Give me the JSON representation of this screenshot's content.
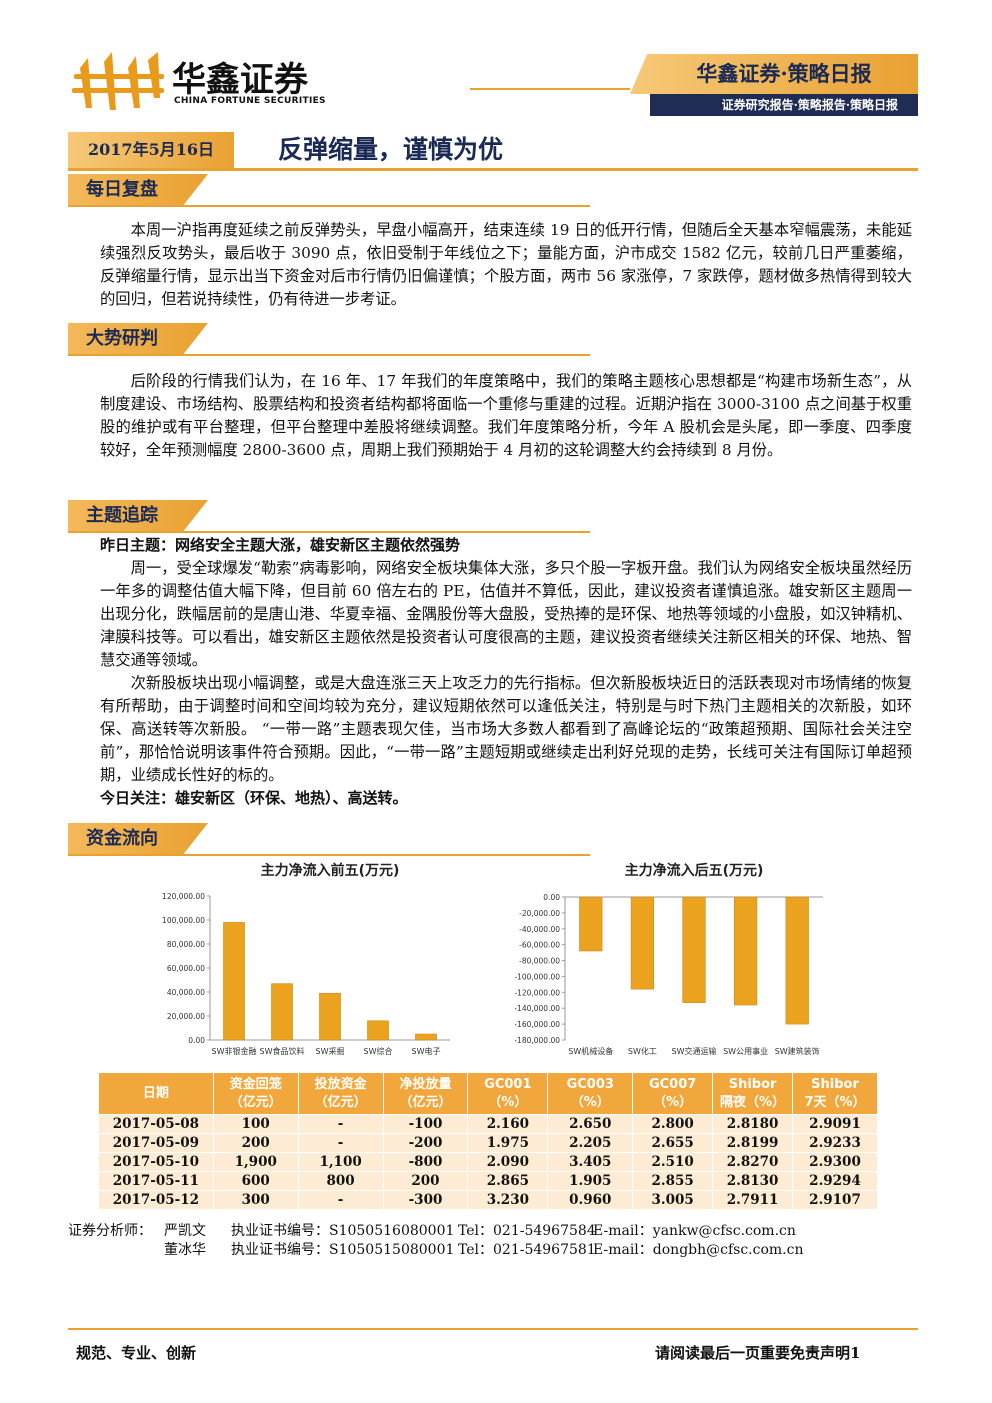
{
  "header": {
    "logo_name": "华鑫证券",
    "logo_english": "CHINA FORTUNE SECURITIES",
    "banner_title": "华鑫证券·策略日报",
    "banner_subtitle": "证券研究报告·策略报告·策略日报"
  },
  "report": {
    "date": "2017年5月16日",
    "title": "反弹缩量，谨慎为优"
  },
  "sections": [
    {
      "heading": "每日复盘",
      "paragraphs": [
        "本周一沪指再度延续之前反弹势头，早盘小幅高开，结束连续 19 日的低开行情，但随后全天基本窄幅震荡，未能延续强烈反攻势头，最后收于 3090 点，依旧受制于年线位之下；量能方面，沪市成交 1582 亿元，较前几日严重萎缩，反弹缩量行情，显示出当下资金对后市行情仍旧偏谨慎；个股方面，两市 56 家涨停，7 家跌停，题材做多热情得到较大的回归，但若说持续性，仍有待进一步考证。"
      ]
    },
    {
      "heading": "大势研判",
      "paragraphs": [
        "后阶段的行情我们认为，在 16 年、17 年我们的年度策略中，我们的策略主题核心思想都是“构建市场新生态”，从制度建设、市场结构、股票结构和投资者结构都将面临一个重修与重建的过程。近期沪指在 3000-3100 点之间基于权重股的维护或有平台整理，但平台整理中差股将继续调整。我们年度策略分析，今年 A 股机会是头尾，即一季度、四季度较好，全年预测幅度 2800-3600 点，周期上我们预期始于 4 月初的这轮调整大约会持续到 8 月份。"
      ]
    },
    {
      "heading": "主题追踪",
      "lead": "昨日主题：网络安全主题大涨，雄安新区主题依然强势",
      "paragraphs": [
        "周一，受全球爆发“勒索”病毒影响，网络安全板块集体大涨，多只个股一字板开盘。我们认为网络安全板块虽然经历一年多的调整估值大幅下降，但目前 60 倍左右的 PE，估值并不算低，因此，建议投资者谨慎追涨。雄安新区主题周一出现分化，跌幅居前的是唐山港、华夏幸福、金隅股份等大盘股，受热捧的是环保、地热等领域的小盘股，如汉钟精机、津膜科技等。可以看出，雄安新区主题依然是投资者认可度很高的主题，建议投资者继续关注新区相关的环保、地热、智慧交通等领域。",
        "次新股板块出现小幅调整，或是大盘连涨三天上攻乏力的先行指标。但次新股板块近日的活跃表现对市场情绪的恢复有所帮助，由于调整时间和空间均较为充分，建议短期依然可以逢低关注，特别是与时下热门主题相关的次新股，如环保、高送转等次新股。 “一带一路”主题表现欠佳，当市场大多数人都看到了高峰论坛的“政策超预期、国际社会关注空前”，那恰恰说明该事件符合预期。因此，“一带一路”主题短期或继续走出利好兑现的走势，长线可关注有国际订单超预期，业绩成长性好的标的。"
      ],
      "tail": "今日关注：雄安新区（环保、地热）、高送转。"
    },
    {
      "heading": "资金流向"
    }
  ],
  "chart_data": [
    {
      "type": "bar",
      "title": "主力净流入前五(万元)",
      "categories": [
        "SW非银金融",
        "SW食品饮料",
        "SW采掘",
        "SW综合",
        "SW电子"
      ],
      "values": [
        98000,
        47000,
        39000,
        16000,
        5000
      ],
      "color": "#eba21e",
      "ylim": [
        0,
        120000
      ],
      "yticks": [
        {
          "value": 0,
          "label": "0.00"
        },
        {
          "value": 20000,
          "label": "20,000.00"
        },
        {
          "value": 40000,
          "label": "40,000.00"
        },
        {
          "value": 60000,
          "label": "60,000.00"
        },
        {
          "value": 80000,
          "label": "80,000.00"
        },
        {
          "value": 100000,
          "label": "100,000.00"
        },
        {
          "value": 120000,
          "label": "120,000.00"
        }
      ]
    },
    {
      "type": "bar",
      "title": "主力净流入后五(万元)",
      "categories": [
        "SW机械设备",
        "SW化工",
        "SW交通运输",
        "SW公用事业",
        "SW建筑装饰"
      ],
      "values": [
        -68000,
        -116000,
        -133000,
        -136000,
        -160000
      ],
      "color": "#eba21e",
      "ylim": [
        -180000,
        0
      ],
      "yticks": [
        {
          "value": 0,
          "label": "0.00"
        },
        {
          "value": -20000,
          "label": "-20,000.00"
        },
        {
          "value": -40000,
          "label": "-40,000.00"
        },
        {
          "value": -60000,
          "label": "-60,000.00"
        },
        {
          "value": -80000,
          "label": "-80,000.00"
        },
        {
          "value": -100000,
          "label": "-100,000.00"
        },
        {
          "value": -120000,
          "label": "-120,000.00"
        },
        {
          "value": -140000,
          "label": "-140,000.00"
        },
        {
          "value": -160000,
          "label": "-160,000.00"
        },
        {
          "value": -180000,
          "label": "-180,000.00"
        }
      ]
    }
  ],
  "table": {
    "header": [
      [
        "日期"
      ],
      [
        "资金回笼",
        "（亿元）"
      ],
      [
        "投放资金",
        "（亿元）"
      ],
      [
        "净投放量",
        "（亿元）"
      ],
      [
        "GC001",
        "（%）"
      ],
      [
        "GC003",
        "（%）"
      ],
      [
        "GC007",
        "（%）"
      ],
      [
        "Shibor",
        "隔夜（%）"
      ],
      [
        "Shibor",
        "7天（%）"
      ]
    ],
    "rows": [
      [
        "2017-05-08",
        "100",
        "-",
        "-100",
        "2.160",
        "2.650",
        "2.800",
        "2.8180",
        "2.9091"
      ],
      [
        "2017-05-09",
        "200",
        "-",
        "-200",
        "1.975",
        "2.205",
        "2.655",
        "2.8199",
        "2.9233"
      ],
      [
        "2017-05-10",
        "1,900",
        "1,100",
        "-800",
        "2.090",
        "3.405",
        "2.510",
        "2.8270",
        "2.9300"
      ],
      [
        "2017-05-11",
        "600",
        "800",
        "200",
        "2.865",
        "1.905",
        "2.855",
        "2.8130",
        "2.9294"
      ],
      [
        "2017-05-12",
        "300",
        "-",
        "-300",
        "3.230",
        "0.960",
        "3.005",
        "2.7911",
        "2.9107"
      ]
    ]
  },
  "analysts": {
    "label": "证券分析师：",
    "people": [
      [
        "严凯文",
        "执业证书编号：S1050516080001",
        "Tel：021-54967584",
        "E-mail：yankw@cfsc.com.cn"
      ],
      [
        "董冰华",
        "执业证书编号：S1050515080001",
        "Tel：021-54967581",
        "E-mail：dongbh@cfsc.com.cn"
      ]
    ]
  },
  "footer": {
    "motto": "规范、专业、创新",
    "disclaimer": "请阅读最后一页重要免责声明",
    "page": "1"
  }
}
